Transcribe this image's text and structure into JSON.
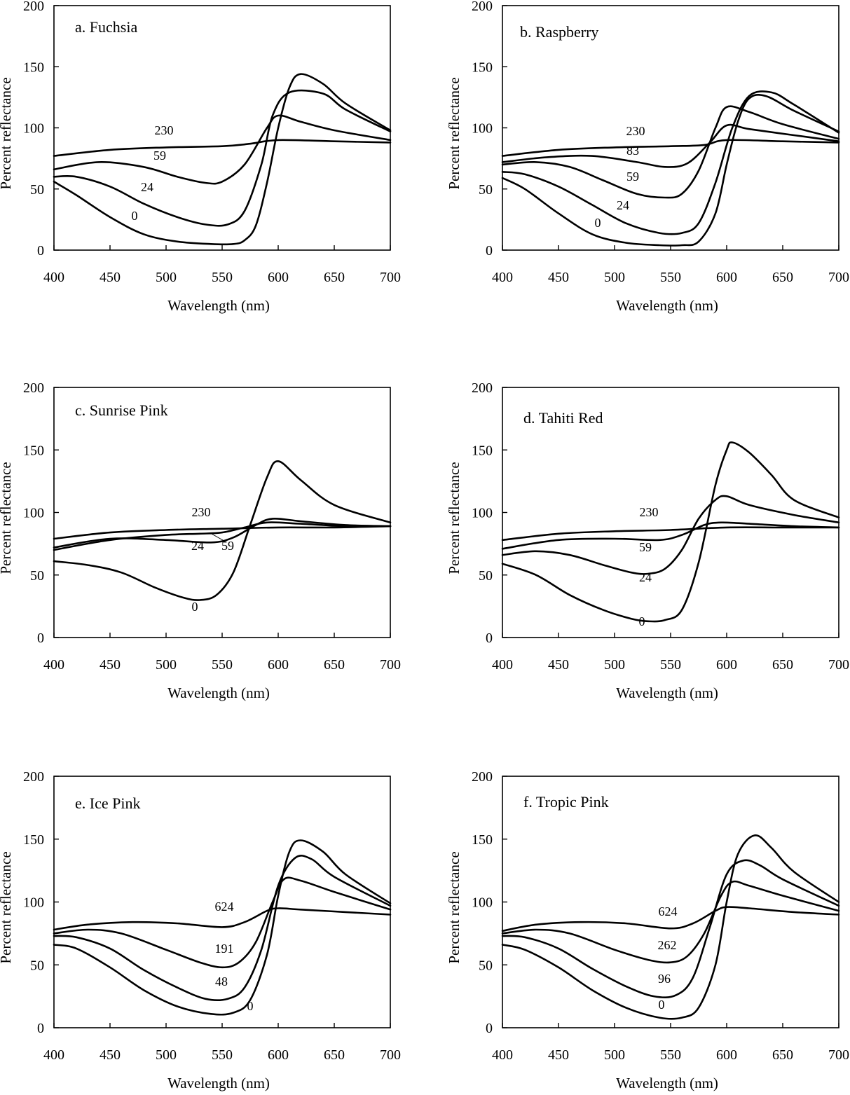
{
  "chart_data": [
    {
      "type": "line",
      "title": "a. Fuchsia",
      "xlabel": "Wavelength (nm)",
      "ylabel": "Percent reflectance",
      "xlim": [
        400,
        700
      ],
      "ylim": [
        0,
        200
      ],
      "xticks": [
        "400",
        "450",
        "500",
        "550",
        "600",
        "650",
        "700"
      ],
      "yticks": [
        "0",
        "50",
        "100",
        "150",
        "200"
      ],
      "grid": false,
      "series": [
        {
          "name": "230",
          "x": [
            400,
            450,
            500,
            550,
            575,
            600,
            650,
            700
          ],
          "y": [
            77,
            82,
            84,
            85,
            87,
            90,
            89,
            88
          ]
        },
        {
          "name": "59",
          "x": [
            400,
            440,
            480,
            510,
            535,
            550,
            570,
            590,
            600,
            620,
            650,
            700
          ],
          "y": [
            66,
            72,
            68,
            60,
            55,
            56,
            70,
            100,
            110,
            105,
            98,
            90
          ]
        },
        {
          "name": "24",
          "x": [
            400,
            420,
            450,
            480,
            510,
            535,
            555,
            570,
            585,
            595,
            610,
            640,
            660,
            700
          ],
          "y": [
            60,
            60,
            52,
            38,
            27,
            21,
            21,
            32,
            70,
            110,
            129,
            128,
            115,
            97
          ]
        },
        {
          "name": "0",
          "x": [
            400,
            420,
            450,
            480,
            510,
            540,
            560,
            570,
            580,
            590,
            600,
            610,
            620,
            640,
            660,
            700
          ],
          "y": [
            56,
            45,
            27,
            13,
            7,
            5,
            5,
            8,
            20,
            55,
            100,
            133,
            144,
            136,
            120,
            98
          ]
        }
      ],
      "labels": [
        "230",
        "59",
        "24",
        "0"
      ]
    },
    {
      "type": "line",
      "title": "b. Raspberry",
      "xlabel": "Wavelength (nm)",
      "ylabel": "Percent reflectance",
      "xlim": [
        400,
        700
      ],
      "ylim": [
        0,
        200
      ],
      "xticks": [
        "400",
        "450",
        "500",
        "550",
        "600",
        "650",
        "700"
      ],
      "yticks": [
        "0",
        "50",
        "100",
        "150",
        "200"
      ],
      "grid": false,
      "series": [
        {
          "name": "230",
          "x": [
            400,
            450,
            500,
            550,
            580,
            600,
            650,
            700
          ],
          "y": [
            77,
            82,
            84,
            85,
            86,
            90,
            89,
            88
          ]
        },
        {
          "name": "83",
          "x": [
            400,
            440,
            480,
            520,
            545,
            565,
            585,
            600,
            620,
            660,
            700
          ],
          "y": [
            72,
            76,
            77,
            72,
            68,
            71,
            88,
            102,
            99,
            94,
            89
          ]
        },
        {
          "name": "59",
          "x": [
            400,
            430,
            460,
            490,
            520,
            545,
            560,
            575,
            590,
            600,
            620,
            650,
            700
          ],
          "y": [
            70,
            72,
            68,
            57,
            46,
            43,
            46,
            65,
            100,
            117,
            113,
            103,
            91
          ]
        },
        {
          "name": "24",
          "x": [
            400,
            420,
            450,
            480,
            510,
            540,
            560,
            575,
            590,
            605,
            620,
            640,
            660,
            700
          ],
          "y": [
            64,
            62,
            52,
            37,
            22,
            14,
            14,
            22,
            55,
            100,
            126,
            129,
            119,
            96
          ]
        },
        {
          "name": "0",
          "x": [
            400,
            420,
            450,
            480,
            510,
            540,
            560,
            575,
            590,
            600,
            610,
            620,
            635,
            660,
            700
          ],
          "y": [
            59,
            50,
            30,
            13,
            6,
            4,
            4,
            7,
            30,
            70,
            105,
            124,
            126,
            114,
            97
          ]
        }
      ],
      "labels": [
        "230",
        "83",
        "59",
        "24",
        "0"
      ]
    },
    {
      "type": "line",
      "title": "c. Sunrise Pink",
      "xlabel": "Wavelength (nm)",
      "ylabel": "Percent reflectance",
      "xlim": [
        400,
        700
      ],
      "ylim": [
        0,
        200
      ],
      "xticks": [
        "400",
        "450",
        "500",
        "550",
        "600",
        "650",
        "700"
      ],
      "yticks": [
        "0",
        "50",
        "100",
        "150",
        "200"
      ],
      "grid": false,
      "series": [
        {
          "name": "230",
          "x": [
            400,
            450,
            500,
            550,
            600,
            650,
            700
          ],
          "y": [
            79,
            84,
            86,
            87,
            88,
            88,
            89
          ]
        },
        {
          "name": "24",
          "x": [
            400,
            450,
            500,
            540,
            560,
            580,
            595,
            620,
            660,
            700
          ],
          "y": [
            72,
            79,
            78,
            76,
            80,
            90,
            95,
            93,
            90,
            89
          ]
        },
        {
          "name": "59",
          "x": [
            400,
            450,
            500,
            530,
            550,
            570,
            590,
            620,
            660,
            700
          ],
          "y": [
            70,
            78,
            82,
            83,
            84,
            88,
            92,
            91,
            89,
            89
          ]
        },
        {
          "name": "0",
          "x": [
            400,
            430,
            460,
            490,
            515,
            530,
            545,
            560,
            575,
            590,
            600,
            620,
            650,
            700
          ],
          "y": [
            61,
            58,
            52,
            40,
            32,
            30,
            34,
            52,
            90,
            128,
            141,
            126,
            106,
            92
          ]
        }
      ],
      "labels": [
        "230",
        "24",
        "59",
        "0"
      ]
    },
    {
      "type": "line",
      "title": "d. Tahiti Red",
      "xlabel": "Wavelength (nm)",
      "ylabel": "Percent reflectance",
      "xlim": [
        400,
        700
      ],
      "ylim": [
        0,
        200
      ],
      "xticks": [
        "400",
        "450",
        "500",
        "550",
        "600",
        "650",
        "700"
      ],
      "yticks": [
        "0",
        "50",
        "100",
        "150",
        "200"
      ],
      "grid": false,
      "series": [
        {
          "name": "230",
          "x": [
            400,
            450,
            500,
            550,
            600,
            650,
            700
          ],
          "y": [
            78,
            83,
            85,
            86,
            88,
            88,
            88
          ]
        },
        {
          "name": "59",
          "x": [
            400,
            450,
            500,
            540,
            560,
            580,
            595,
            620,
            660,
            700
          ],
          "y": [
            71,
            78,
            79,
            78,
            82,
            90,
            92,
            91,
            89,
            88
          ]
        },
        {
          "name": "24",
          "x": [
            400,
            430,
            460,
            490,
            515,
            530,
            545,
            560,
            575,
            590,
            600,
            620,
            660,
            700
          ],
          "y": [
            66,
            69,
            66,
            58,
            52,
            51,
            55,
            70,
            95,
            110,
            113,
            106,
            98,
            92
          ]
        },
        {
          "name": "0",
          "x": [
            400,
            430,
            460,
            490,
            515,
            530,
            545,
            560,
            575,
            590,
            600,
            605,
            620,
            640,
            660,
            700
          ],
          "y": [
            59,
            50,
            34,
            22,
            15,
            13,
            14,
            22,
            60,
            122,
            150,
            156,
            148,
            130,
            110,
            96
          ]
        }
      ],
      "labels": [
        "230",
        "59",
        "24",
        "0"
      ]
    },
    {
      "type": "line",
      "title": "e. Ice Pink",
      "xlabel": "Wavelength (nm)",
      "ylabel": "Percent reflectance",
      "xlim": [
        400,
        700
      ],
      "ylim": [
        0,
        200
      ],
      "xticks": [
        "400",
        "450",
        "500",
        "550",
        "600",
        "650",
        "700"
      ],
      "yticks": [
        "0",
        "50",
        "100",
        "150",
        "200"
      ],
      "grid": false,
      "series": [
        {
          "name": "624",
          "x": [
            400,
            430,
            470,
            510,
            550,
            570,
            590,
            600,
            620,
            660,
            700
          ],
          "y": [
            78,
            82,
            84,
            83,
            80,
            84,
            93,
            95,
            94,
            92,
            90
          ]
        },
        {
          "name": "191",
          "x": [
            400,
            430,
            460,
            500,
            530,
            550,
            565,
            580,
            595,
            605,
            620,
            650,
            700
          ],
          "y": [
            75,
            78,
            75,
            62,
            52,
            48,
            52,
            68,
            100,
            118,
            117,
            108,
            94
          ]
        },
        {
          "name": "48",
          "x": [
            400,
            420,
            450,
            480,
            510,
            535,
            555,
            570,
            585,
            600,
            615,
            630,
            650,
            700
          ],
          "y": [
            73,
            72,
            63,
            46,
            32,
            23,
            23,
            32,
            62,
            113,
            135,
            134,
            120,
            97
          ]
        },
        {
          "name": "0",
          "x": [
            400,
            420,
            450,
            480,
            510,
            540,
            560,
            575,
            590,
            600,
            610,
            620,
            640,
            660,
            700
          ],
          "y": [
            66,
            63,
            48,
            30,
            17,
            11,
            12,
            22,
            58,
            105,
            140,
            149,
            140,
            122,
            99
          ]
        }
      ],
      "labels": [
        "624",
        "191",
        "48",
        "0"
      ]
    },
    {
      "type": "line",
      "title": "f. Tropic Pink",
      "xlabel": "Wavelength (nm)",
      "ylabel": "Percent reflectance",
      "xlim": [
        400,
        700
      ],
      "ylim": [
        0,
        200
      ],
      "xticks": [
        "400",
        "450",
        "500",
        "550",
        "600",
        "650",
        "700"
      ],
      "yticks": [
        "0",
        "50",
        "100",
        "150",
        "200"
      ],
      "grid": false,
      "series": [
        {
          "name": "624",
          "x": [
            400,
            430,
            470,
            510,
            550,
            570,
            590,
            600,
            620,
            660,
            700
          ],
          "y": [
            77,
            82,
            84,
            83,
            79,
            83,
            93,
            96,
            95,
            92,
            90
          ]
        },
        {
          "name": "262",
          "x": [
            400,
            430,
            460,
            500,
            530,
            550,
            565,
            580,
            595,
            605,
            620,
            650,
            700
          ],
          "y": [
            75,
            78,
            75,
            62,
            54,
            52,
            57,
            75,
            105,
            116,
            113,
            105,
            93
          ]
        },
        {
          "name": "96",
          "x": [
            400,
            420,
            450,
            480,
            510,
            535,
            555,
            570,
            585,
            600,
            615,
            630,
            650,
            700
          ],
          "y": [
            73,
            72,
            63,
            47,
            33,
            25,
            26,
            40,
            80,
            122,
            133,
            129,
            118,
            97
          ]
        },
        {
          "name": "0",
          "x": [
            400,
            420,
            450,
            480,
            510,
            540,
            560,
            575,
            590,
            600,
            610,
            625,
            640,
            660,
            700
          ],
          "y": [
            66,
            62,
            48,
            30,
            16,
            8,
            8,
            16,
            50,
            100,
            138,
            153,
            143,
            124,
            100
          ]
        }
      ],
      "labels": [
        "624",
        "262",
        "96",
        "0"
      ]
    }
  ]
}
